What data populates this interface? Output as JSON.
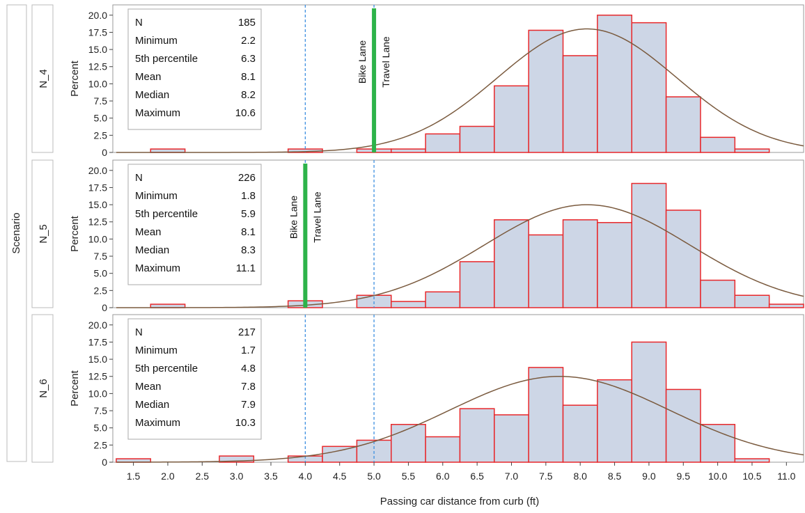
{
  "chart_data": {
    "type": "bar",
    "subtype": "histogram-panel",
    "xlabel": "Passing car distance from curb (ft)",
    "ylabel": "Percent",
    "row_label": "Scenario",
    "xlim": [
      1.2,
      11.25
    ],
    "ylim": [
      0,
      21.5
    ],
    "x_ticks": [
      "1.5",
      "2.0",
      "2.5",
      "3.0",
      "3.5",
      "4.0",
      "4.5",
      "5.0",
      "5.5",
      "6.0",
      "6.5",
      "7.0",
      "7.5",
      "8.0",
      "8.5",
      "9.0",
      "9.5",
      "10.0",
      "10.5",
      "11.0"
    ],
    "y_ticks": [
      "0",
      "2.5",
      "5.0",
      "7.5",
      "10.0",
      "12.5",
      "15.0",
      "17.5",
      "20.0"
    ],
    "bin_width": 0.5,
    "bin_centers": [
      1.5,
      2.0,
      2.5,
      3.0,
      3.5,
      4.0,
      4.5,
      5.0,
      5.5,
      6.0,
      6.5,
      7.0,
      7.5,
      8.0,
      8.5,
      9.0,
      9.5,
      10.0,
      10.5,
      11.0
    ],
    "stat_labels": [
      "N",
      "Minimum",
      "5th percentile",
      "Mean",
      "Median",
      "Maximum"
    ],
    "lane_labels": {
      "bike": "Bike Lane",
      "travel": "Travel Lane"
    },
    "colors": {
      "bar_fill": "#cdd6e6",
      "bar_stroke": "#e8272a",
      "curve": "#7a5a3e",
      "lane_marker": "#2db34a",
      "ref_line": "#3d8fe0"
    },
    "series": [
      {
        "name": "N_4",
        "values": [
          0,
          0.5,
          0,
          0,
          0,
          0.5,
          0,
          0.5,
          0.5,
          2.7,
          3.8,
          9.7,
          17.8,
          14.1,
          20.0,
          18.9,
          8.1,
          2.2,
          0.5,
          0
        ],
        "stats": [
          "185",
          "2.2",
          "6.3",
          "8.1",
          "8.2",
          "10.6"
        ],
        "normal_mean": 8.1,
        "normal_sd": 1.3,
        "normal_peak": 18.0,
        "lane_marker_x": 5.0,
        "ref_lines": [
          4.0,
          5.0
        ]
      },
      {
        "name": "N_5",
        "values": [
          0,
          0.5,
          0,
          0,
          0,
          1.0,
          0,
          1.8,
          0.9,
          2.3,
          6.7,
          12.8,
          10.6,
          12.8,
          12.4,
          18.1,
          14.2,
          4.0,
          1.8,
          0.5
        ],
        "stats": [
          "226",
          "1.8",
          "5.9",
          "8.1",
          "8.3",
          "11.1"
        ],
        "normal_mean": 8.1,
        "normal_sd": 1.5,
        "normal_peak": 15.0,
        "lane_marker_x": 4.0,
        "ref_lines": [
          4.0,
          5.0
        ]
      },
      {
        "name": "N_6",
        "values": [
          0.5,
          0,
          0,
          0.9,
          0,
          0.9,
          2.3,
          3.2,
          5.5,
          3.7,
          7.8,
          6.9,
          13.8,
          8.3,
          12.0,
          17.5,
          10.6,
          5.5,
          0.5,
          0
        ],
        "stats": [
          "217",
          "1.7",
          "4.8",
          "7.8",
          "7.9",
          "10.3"
        ],
        "normal_mean": 7.7,
        "normal_sd": 1.6,
        "normal_peak": 12.5,
        "lane_marker_x": null,
        "ref_lines": [
          4.0,
          5.0
        ]
      }
    ]
  }
}
